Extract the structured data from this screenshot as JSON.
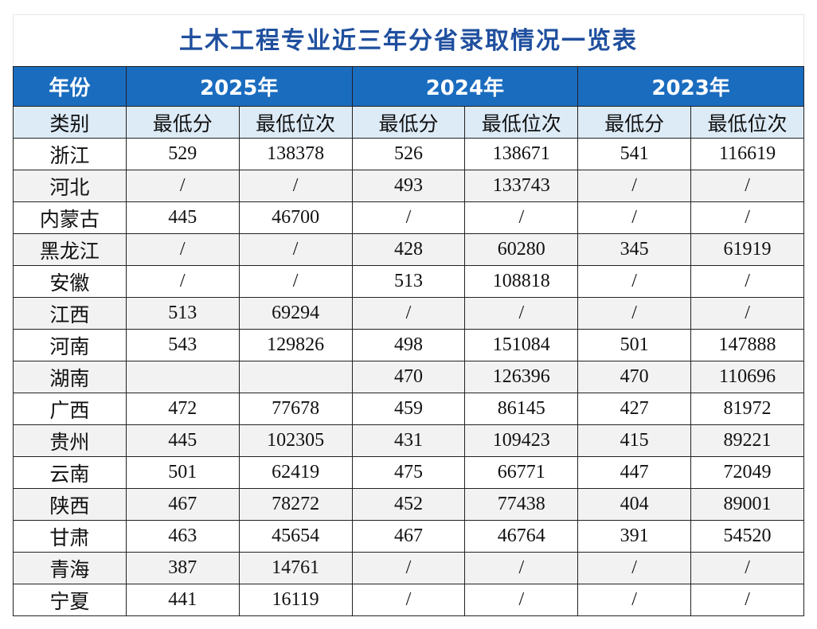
{
  "title": "土木工程专业近三年分省录取情况一览表",
  "header": [
    "年份",
    "2025年",
    "2024年",
    "2023年"
  ],
  "subheader": [
    "类别",
    "最低分",
    "最低位次",
    "最低分",
    "最低位次",
    "最低分",
    "最低位次"
  ],
  "rows": [
    [
      "浙江",
      529,
      138378,
      526,
      138671,
      541,
      116619
    ],
    [
      "河北",
      "/",
      "/",
      493,
      133743,
      "/",
      "/"
    ],
    [
      "内蒙古",
      445,
      46700,
      "/",
      "/",
      "/",
      "/"
    ],
    [
      "黑龙江",
      "/",
      "/",
      428,
      60280,
      345,
      61919
    ],
    [
      "安徽",
      "/",
      "/",
      513,
      108818,
      "/",
      "/"
    ],
    [
      "江西",
      513,
      69294,
      "/",
      "/",
      "/",
      "/"
    ],
    [
      "河南",
      543,
      129826,
      498,
      151084,
      501,
      147888
    ],
    [
      "湖南",
      null,
      null,
      470,
      126396,
      470,
      110696
    ],
    [
      "广西",
      472,
      77678,
      459,
      86145,
      427,
      81972
    ],
    [
      "贵州",
      445,
      102305,
      431,
      109423,
      415,
      89221
    ],
    [
      "云南",
      501,
      62419,
      475,
      66771,
      447,
      72049
    ],
    [
      "陕西",
      467,
      78272,
      452,
      77438,
      404,
      89001
    ],
    [
      "甘肃",
      463,
      45654,
      467,
      46764,
      391,
      54520
    ],
    [
      "青海",
      387,
      14761,
      "/",
      "/",
      "/",
      "/"
    ],
    [
      "宁夏",
      441,
      16119,
      "/",
      "/",
      "/",
      "/"
    ]
  ]
}
